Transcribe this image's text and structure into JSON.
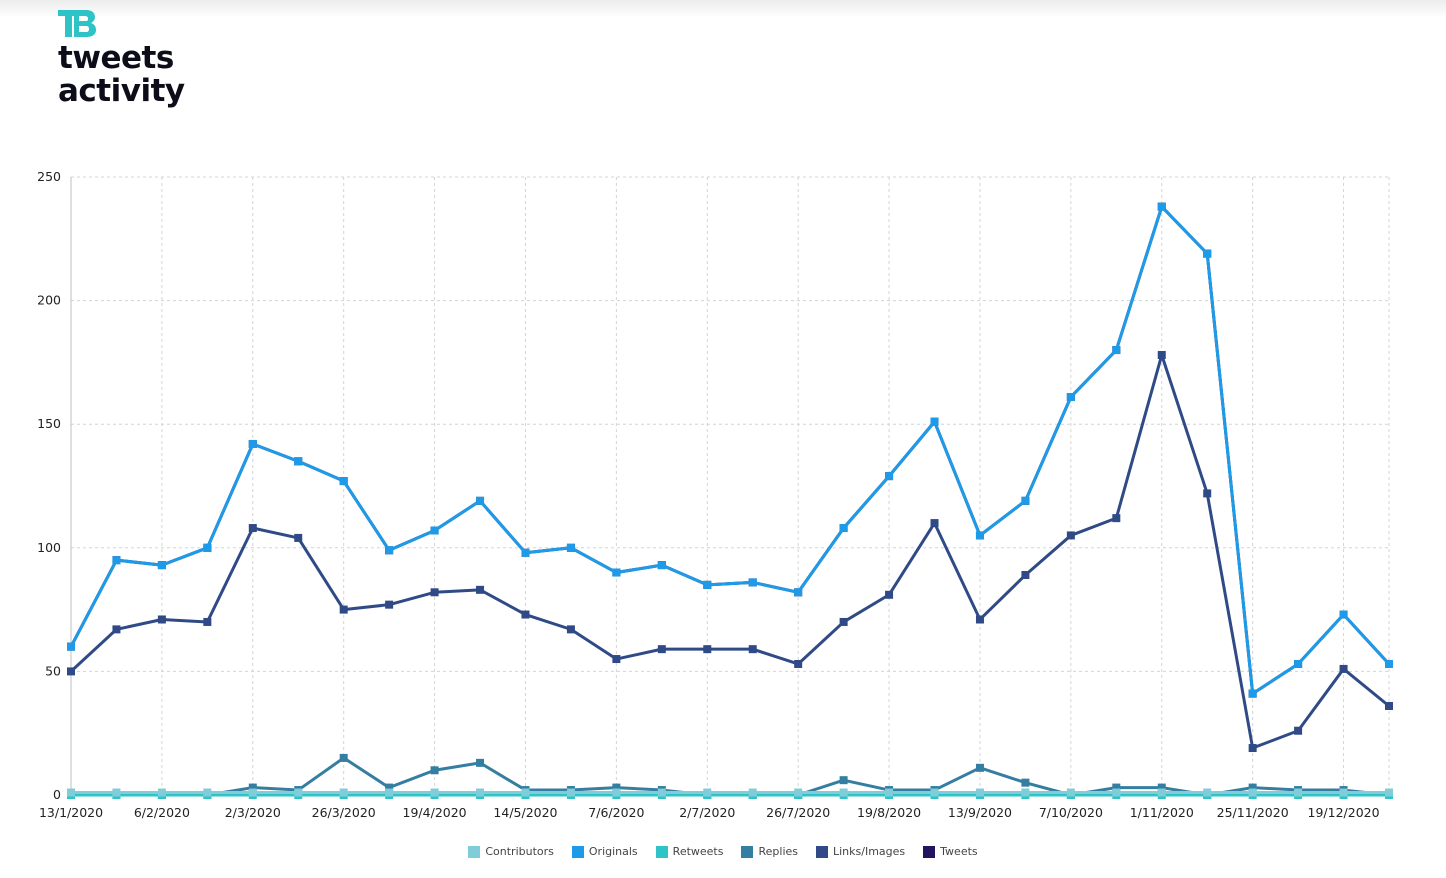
{
  "brand": {
    "logo_icon": "tb-logo-icon",
    "title_line1": "tweets",
    "title_line2": "activity",
    "accent": "#2ec4c7"
  },
  "chart_data": {
    "type": "line",
    "title": "",
    "xlabel": "",
    "ylabel": "",
    "ylim": [
      0,
      250
    ],
    "yticks": [
      0,
      50,
      100,
      150,
      200,
      250
    ],
    "grid": true,
    "legend_position": "bottom-center",
    "x": [
      "13/1/2020",
      "",
      "6/2/2020",
      "",
      "2/3/2020",
      "",
      "26/3/2020",
      "",
      "19/4/2020",
      "",
      "14/5/2020",
      "",
      "7/6/2020",
      "",
      "2/7/2020",
      "",
      "26/7/2020",
      "",
      "19/8/2020",
      "",
      "13/9/2020",
      "",
      "7/10/2020",
      "",
      "1/11/2020",
      "",
      "25/11/2020",
      "",
      "19/12/2020",
      ""
    ],
    "xtick_labels": [
      "13/1/2020",
      "6/2/2020",
      "2/3/2020",
      "26/3/2020",
      "19/4/2020",
      "14/5/2020",
      "7/6/2020",
      "2/7/2020",
      "26/7/2020",
      "19/8/2020",
      "13/9/2020",
      "7/10/2020",
      "1/11/2020",
      "25/11/2020",
      "19/12/2020"
    ],
    "series": [
      {
        "name": "Contributors",
        "color": "#7fcdd9",
        "values": [
          1,
          1,
          1,
          1,
          1,
          1,
          1,
          1,
          1,
          1,
          1,
          1,
          1,
          1,
          1,
          1,
          1,
          1,
          1,
          1,
          1,
          1,
          1,
          1,
          1,
          1,
          1,
          1,
          1,
          1
        ]
      },
      {
        "name": "Originals",
        "color": "#1e9be8",
        "values": [
          60,
          95,
          93,
          100,
          142,
          135,
          127,
          99,
          107,
          119,
          98,
          100,
          90,
          93,
          85,
          86,
          82,
          108,
          129,
          151,
          105,
          119,
          161,
          180,
          238,
          219,
          41,
          53,
          73,
          53
        ]
      },
      {
        "name": "Retweets",
        "color": "#2ec4c7",
        "values": [
          0,
          0,
          0,
          0,
          0,
          0,
          0,
          0,
          0,
          0,
          0,
          0,
          0,
          0,
          0,
          0,
          0,
          0,
          0,
          0,
          0,
          0,
          0,
          0,
          0,
          0,
          0,
          0,
          0,
          0
        ]
      },
      {
        "name": "Replies",
        "color": "#347ea1",
        "values": [
          0,
          0,
          0,
          0,
          3,
          2,
          15,
          3,
          10,
          13,
          2,
          2,
          3,
          2,
          0,
          0,
          0,
          6,
          2,
          2,
          11,
          5,
          0,
          3,
          3,
          0,
          3,
          2,
          2,
          0
        ]
      },
      {
        "name": "Links/Images",
        "color": "#2f4a86",
        "values": [
          50,
          67,
          71,
          70,
          108,
          104,
          75,
          77,
          82,
          83,
          73,
          67,
          55,
          59,
          59,
          59,
          53,
          70,
          81,
          110,
          71,
          89,
          105,
          112,
          178,
          122,
          19,
          26,
          51,
          36
        ]
      },
      {
        "name": "Tweets",
        "color": "#24135e",
        "values": [
          60,
          95,
          93,
          100,
          142,
          135,
          127,
          99,
          107,
          119,
          98,
          100,
          90,
          93,
          85,
          86,
          82,
          108,
          129,
          151,
          105,
          119,
          161,
          180,
          238,
          219,
          41,
          53,
          73,
          53
        ]
      }
    ]
  }
}
